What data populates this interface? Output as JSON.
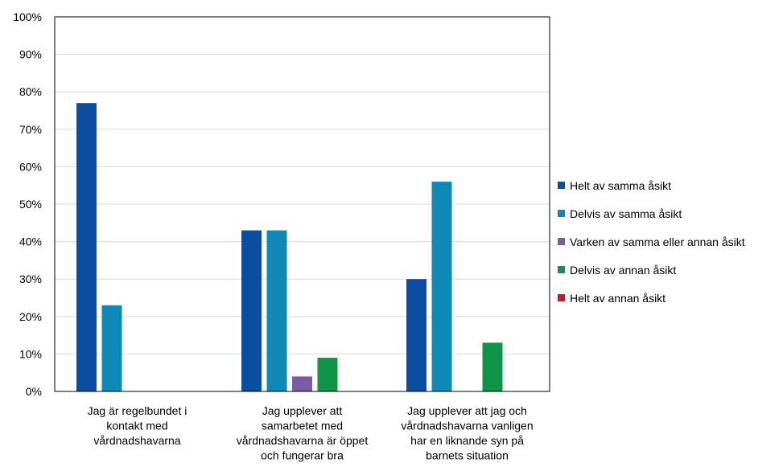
{
  "chart_data": {
    "type": "bar",
    "title": "",
    "xlabel": "",
    "ylabel": "",
    "ylim": [
      0,
      100
    ],
    "yticks": [
      "0%",
      "10%",
      "20%",
      "30%",
      "40%",
      "50%",
      "60%",
      "70%",
      "80%",
      "90%",
      "100%"
    ],
    "grid": true,
    "legend_position": "right",
    "categories": [
      [
        "Jag är regelbundet i",
        "kontakt med",
        "vårdnadshavarna"
      ],
      [
        "Jag upplever att",
        "samarbetet med",
        "vårdnadshavarna är öppet",
        "och fungerar bra"
      ],
      [
        "Jag upplever att jag och",
        "vårdnadshavarna vanligen",
        "har en liknande syn på",
        "barnets situation"
      ]
    ],
    "series": [
      {
        "name": "Helt av samma åsikt",
        "color": "#0b4da1",
        "values": [
          77,
          43,
          30
        ]
      },
      {
        "name": "Delvis av samma åsikt",
        "color": "#0f89b8",
        "values": [
          23,
          43,
          56
        ]
      },
      {
        "name": "Varken av samma eller annan åsikt",
        "color": "#7b5ba6",
        "values": [
          0,
          4,
          0
        ]
      },
      {
        "name": "Delvis av annan åsikt",
        "color": "#0f9448",
        "values": [
          0,
          9,
          13
        ]
      },
      {
        "name": "Helt av annan åsikt",
        "color": "#c21b2c",
        "values": [
          0,
          0,
          0
        ]
      }
    ]
  }
}
